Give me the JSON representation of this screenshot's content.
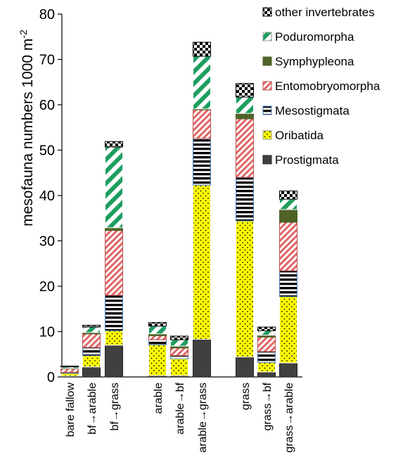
{
  "chart_data": {
    "type": "bar",
    "stacked": true,
    "title": "",
    "ylabel": "mesofauna numbers 1000 m",
    "ylabel_superscript": "-2",
    "ylim": [
      0,
      80
    ],
    "yticks": [
      0,
      10,
      20,
      30,
      40,
      50,
      60,
      70,
      80
    ],
    "grid": false,
    "legend_position": "top-right",
    "categories": [
      "bare fallow",
      "bf→arable",
      "bf→grass",
      "arable",
      "arable→bf",
      "arable→grass",
      "grass",
      "grass→bf",
      "grass→arable"
    ],
    "groups": [
      [
        0,
        1,
        2
      ],
      [
        3,
        4,
        5
      ],
      [
        6,
        7,
        8
      ]
    ],
    "series": [
      {
        "name": "Prostigmata",
        "color": "#404040",
        "pattern": "solid-dark",
        "values": [
          0.2,
          2.2,
          7.0,
          0.3,
          0.3,
          8.3,
          4.4,
          1.1,
          3.1
        ]
      },
      {
        "name": "Oribatida",
        "color": "#ffff00",
        "pattern": "dots",
        "values": [
          0.6,
          2.5,
          3.2,
          6.8,
          3.7,
          34.0,
          30.0,
          2.1,
          14.6
        ]
      },
      {
        "name": "Mesostigmata",
        "color": "#ffffff",
        "pattern": "horizontal-stripes",
        "values": [
          0.2,
          1.8,
          7.8,
          1.1,
          0.7,
          10.3,
          9.6,
          2.4,
          5.7
        ]
      },
      {
        "name": "Entomobryomorpha",
        "color": "#e06666",
        "pattern": "diagonal-hatch",
        "values": [
          0.8,
          3.0,
          14.3,
          0.9,
          1.7,
          6.3,
          12.9,
          3.2,
          10.7
        ]
      },
      {
        "name": "Symphypleona",
        "color": "#4f6228",
        "pattern": "solid-green",
        "values": [
          0.1,
          0.3,
          0.6,
          0.4,
          0.4,
          0.2,
          1.2,
          0.4,
          2.8
        ]
      },
      {
        "name": "Poduromorpha",
        "color": "#1e9e60",
        "pattern": "wide-diagonal",
        "values": [
          0.3,
          1.2,
          17.8,
          1.7,
          1.4,
          11.6,
          3.6,
          1.0,
          2.3
        ]
      },
      {
        "name": "other invertebrates",
        "color": "#000000",
        "pattern": "checker",
        "values": [
          0.2,
          0.4,
          1.2,
          0.8,
          0.8,
          3.1,
          3.0,
          0.8,
          1.8
        ]
      }
    ],
    "legend_order": [
      "other invertebrates",
      "Poduromorpha",
      "Symphypleona",
      "Entomobryomorpha",
      "Mesostigmata",
      "Oribatida",
      "Prostigmata"
    ]
  }
}
